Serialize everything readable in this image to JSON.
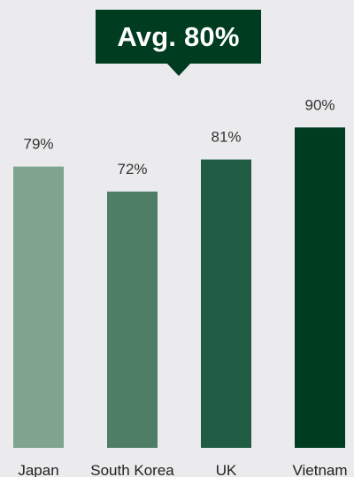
{
  "callout": {
    "text": "Avg. 80%"
  },
  "chart_data": {
    "type": "bar",
    "title": "",
    "xlabel": "",
    "ylabel": "",
    "categories": [
      "Japan",
      "South Korea",
      "UK",
      "Vietnam"
    ],
    "values": [
      79,
      72,
      81,
      90
    ],
    "value_labels": [
      "79%",
      "72%",
      "81%",
      "90%"
    ],
    "colors": [
      "#7ea38f",
      "#4e7e66",
      "#1f5c43",
      "#003d20"
    ],
    "ylim": [
      0,
      100
    ],
    "average": 80,
    "grid": false,
    "legend": "none"
  }
}
